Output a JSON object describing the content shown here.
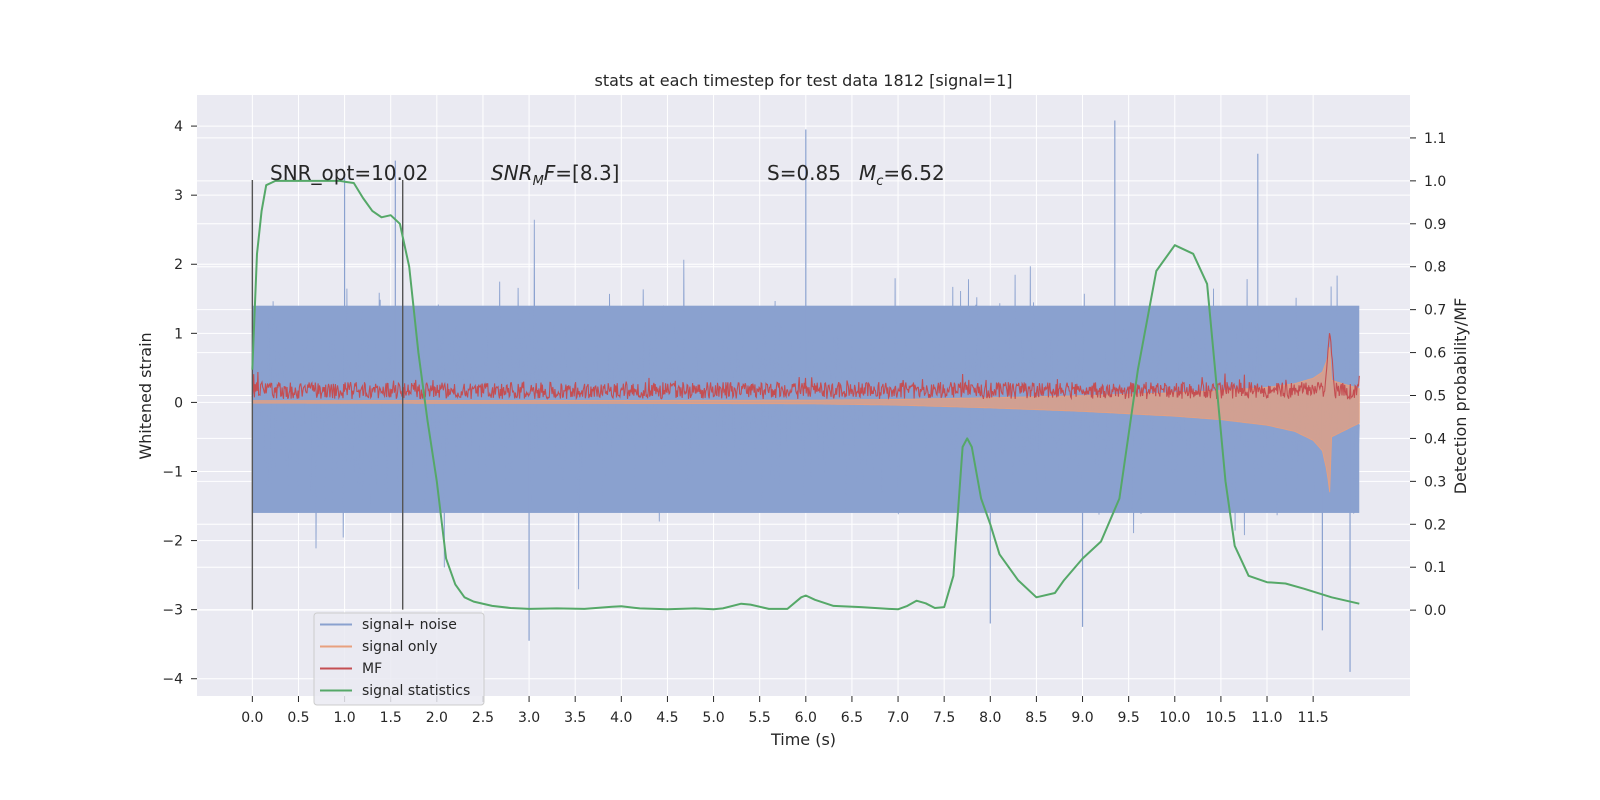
{
  "chart_data": {
    "type": "line",
    "title": "stats at each timestep for test data 1812 [signal=1]",
    "xlabel": "Time (s)",
    "ylabel": "Whitened strain",
    "ylabel_right": "Detection probability/MF",
    "xlim": [
      -0.6,
      12.55
    ],
    "ylim": [
      -4.25,
      4.45
    ],
    "ylim_right": [
      -0.2,
      1.2
    ],
    "x_ticks": [
      0.0,
      0.5,
      1.0,
      1.5,
      2.0,
      2.5,
      3.0,
      3.5,
      4.0,
      4.5,
      5.0,
      5.5,
      6.0,
      6.5,
      7.0,
      7.5,
      8.0,
      8.5,
      9.0,
      9.5,
      10.0,
      10.5,
      11.0,
      11.5
    ],
    "x_tick_labels": [
      "0.0",
      "0.5",
      "1.0",
      "1.5",
      "2.0",
      "2.5",
      "3.0",
      "3.5",
      "4.0",
      "4.5",
      "5.0",
      "5.5",
      "6.0",
      "6.5",
      "7.0",
      "7.5",
      "8.0",
      "8.5",
      "9.0",
      "9.5",
      "10.0",
      "10.5",
      "11.0",
      "11.5"
    ],
    "y_ticks": [
      -4,
      -3,
      -2,
      -1,
      0,
      1,
      2,
      3,
      4
    ],
    "y_tick_labels": [
      "−4",
      "−3",
      "−2",
      "−1",
      "0",
      "1",
      "2",
      "3",
      "4"
    ],
    "y_right_ticks": [
      0.0,
      0.1,
      0.2,
      0.3,
      0.4,
      0.5,
      0.6,
      0.7,
      0.8,
      0.9,
      1.0,
      1.1
    ],
    "y_right_tick_labels": [
      "0.0",
      "0.1",
      "0.2",
      "0.3",
      "0.4",
      "0.5",
      "0.6",
      "0.7",
      "0.8",
      "0.9",
      "1.0",
      "1.1"
    ],
    "grid": true,
    "legend_position": "bottom-left",
    "annotations": [
      {
        "text": "SNR_opt=10.02"
      },
      {
        "text_main": "SNR",
        "text_sub": "M",
        "text_rest": "F=[8.3]"
      },
      {
        "text": "S=0.85"
      },
      {
        "text_main": "M",
        "text_sub": "c",
        "text_rest": "=6.52"
      }
    ],
    "vertical_markers": [
      0.0,
      1.63
    ],
    "series": [
      {
        "name": "signal+ noise",
        "color": "#8aa1cf",
        "axis": "left",
        "x_range": [
          0.0,
          12.0
        ],
        "typical_band": [
          -1.6,
          1.4
        ],
        "peak_max": 4.08,
        "peak_min": -3.9
      },
      {
        "name": "signal only",
        "color": "#e8a07e",
        "axis": "left",
        "x_range": [
          0.0,
          12.0
        ],
        "envelope_x": [
          0,
          4,
          6,
          7,
          8,
          9,
          10,
          10.5,
          11,
          11.3,
          11.5,
          11.6,
          11.65,
          11.68,
          11.7,
          12.0
        ],
        "envelope_amp": [
          0.01,
          0.015,
          0.02,
          0.04,
          0.08,
          0.13,
          0.2,
          0.25,
          0.33,
          0.42,
          0.55,
          0.7,
          1.0,
          1.3,
          0.5,
          0.3
        ]
      },
      {
        "name": "MF",
        "color": "#c44e52",
        "axis": "left",
        "x_range": [
          0.0,
          12.0
        ],
        "typical_range": [
          0.05,
          0.4
        ],
        "peak": {
          "x": 11.68,
          "y": 1.0
        }
      },
      {
        "name": "signal statistics",
        "color": "#55a868",
        "axis": "right",
        "x": [
          0.0,
          0.05,
          0.1,
          0.15,
          0.25,
          0.4,
          0.6,
          0.8,
          0.95,
          1.0,
          1.1,
          1.2,
          1.3,
          1.4,
          1.5,
          1.6,
          1.7,
          1.8,
          1.9,
          2.0,
          2.1,
          2.2,
          2.3,
          2.4,
          2.6,
          2.8,
          3.0,
          3.3,
          3.6,
          3.9,
          4.0,
          4.2,
          4.5,
          4.8,
          5.0,
          5.1,
          5.3,
          5.4,
          5.6,
          5.8,
          5.95,
          6.0,
          6.1,
          6.3,
          6.6,
          6.9,
          7.0,
          7.1,
          7.2,
          7.3,
          7.4,
          7.5,
          7.6,
          7.7,
          7.75,
          7.8,
          7.9,
          8.0,
          8.1,
          8.3,
          8.5,
          8.7,
          8.8,
          9.0,
          9.2,
          9.4,
          9.6,
          9.8,
          10.0,
          10.2,
          10.35,
          10.45,
          10.55,
          10.65,
          10.8,
          11.0,
          11.2,
          11.4,
          11.7,
          12.0
        ],
        "y": [
          0.56,
          0.83,
          0.93,
          0.99,
          1.0,
          1.0,
          1.0,
          1.0,
          1.0,
          0.998,
          0.995,
          0.96,
          0.93,
          0.915,
          0.92,
          0.9,
          0.8,
          0.6,
          0.44,
          0.3,
          0.12,
          0.06,
          0.03,
          0.02,
          0.01,
          0.005,
          0.003,
          0.004,
          0.003,
          0.008,
          0.009,
          0.004,
          0.002,
          0.004,
          0.002,
          0.004,
          0.015,
          0.013,
          0.003,
          0.003,
          0.03,
          0.034,
          0.024,
          0.01,
          0.007,
          0.003,
          0.002,
          0.01,
          0.022,
          0.016,
          0.005,
          0.007,
          0.08,
          0.38,
          0.4,
          0.38,
          0.26,
          0.2,
          0.13,
          0.07,
          0.03,
          0.04,
          0.07,
          0.12,
          0.16,
          0.26,
          0.56,
          0.79,
          0.85,
          0.83,
          0.76,
          0.53,
          0.3,
          0.15,
          0.08,
          0.065,
          0.062,
          0.05,
          0.03,
          0.015
        ]
      }
    ]
  }
}
